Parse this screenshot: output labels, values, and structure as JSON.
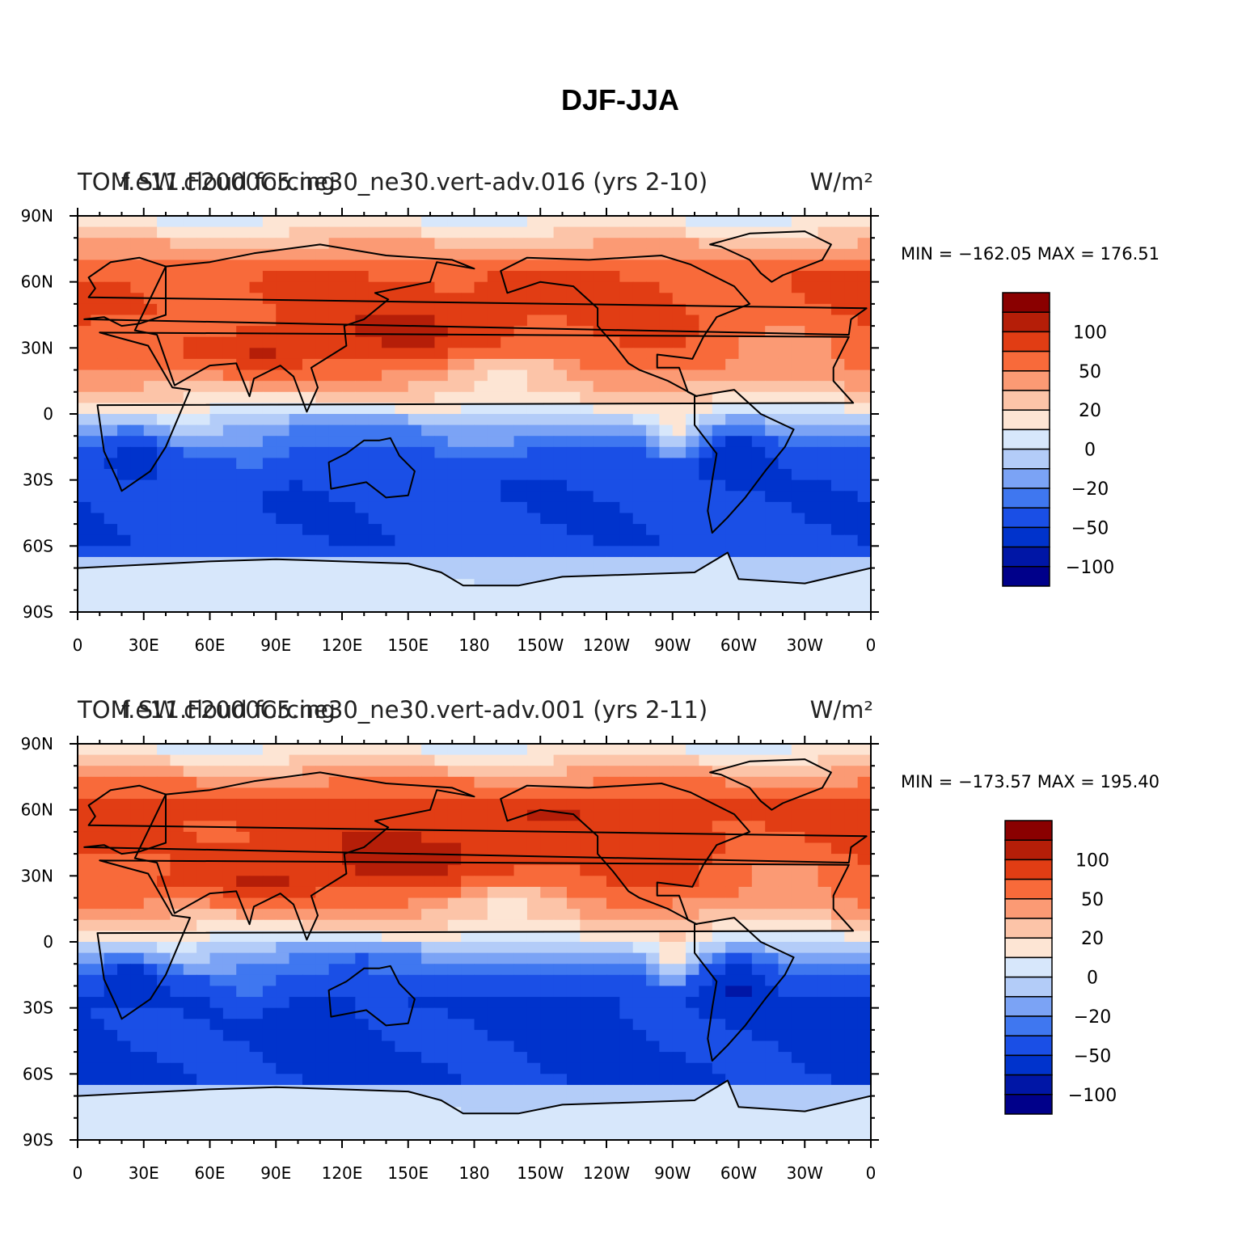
{
  "figure_title": "DJF-JJA",
  "colors": {
    "levels": [
      "#00008a",
      "#0016a6",
      "#0033cc",
      "#1a4fe6",
      "#3f77f0",
      "#7ba3f5",
      "#b3ccf8",
      "#d7e7fb",
      "#fde5d4",
      "#fcc4a8",
      "#fb9a74",
      "#f86a3a",
      "#e13d14",
      "#b51e08",
      "#8a0000"
    ],
    "ocean_warm_hint": "#fde5d4",
    "antarctica": "#d7e7fb",
    "coast": "#000000"
  },
  "chart_data": [
    {
      "type": "heatmap",
      "map_projection": "cylindrical equidistant",
      "title_left_1": "TOM SW cloud forcing",
      "title_left_2": "f.e11.F2000C5.ne30_ne30.vert-adv.016 (yrs 2-10)",
      "units": "W/m²",
      "min_max_text": "MIN = −162.05  MAX = 176.51",
      "min": -162.05,
      "max": 176.51,
      "x_tick_labels": [
        "0",
        "30E",
        "60E",
        "90E",
        "120E",
        "150E",
        "180",
        "150W",
        "120W",
        "90W",
        "60W",
        "30W",
        "0"
      ],
      "y_tick_labels": [
        "90N",
        "60N",
        "30N",
        "0",
        "30S",
        "60S",
        "90S"
      ],
      "colorbar_labels": [
        "100",
        "50",
        "20",
        "0",
        "−20",
        "−50",
        "−100"
      ],
      "xlim": [
        0,
        360
      ],
      "ylim": [
        -90,
        90
      ]
    },
    {
      "type": "heatmap",
      "map_projection": "cylindrical equidistant",
      "title_left_1": "TOM SW cloud forcing",
      "title_left_2": "f.e11.F2000C5.ne30_ne30.vert-adv.001 (yrs 2-11)",
      "units": "W/m²",
      "min_max_text": "MIN = −173.57  MAX = 195.40",
      "min": -173.57,
      "max": 195.4,
      "x_tick_labels": [
        "0",
        "30E",
        "60E",
        "90E",
        "120E",
        "150E",
        "180",
        "150W",
        "120W",
        "90W",
        "60W",
        "30W",
        "0"
      ],
      "y_tick_labels": [
        "90N",
        "60N",
        "30N",
        "0",
        "30S",
        "60S",
        "90S"
      ],
      "colorbar_labels": [
        "100",
        "50",
        "20",
        "0",
        "−20",
        "−50",
        "−100"
      ],
      "xlim": [
        0,
        360
      ],
      "ylim": [
        -90,
        90
      ]
    }
  ]
}
